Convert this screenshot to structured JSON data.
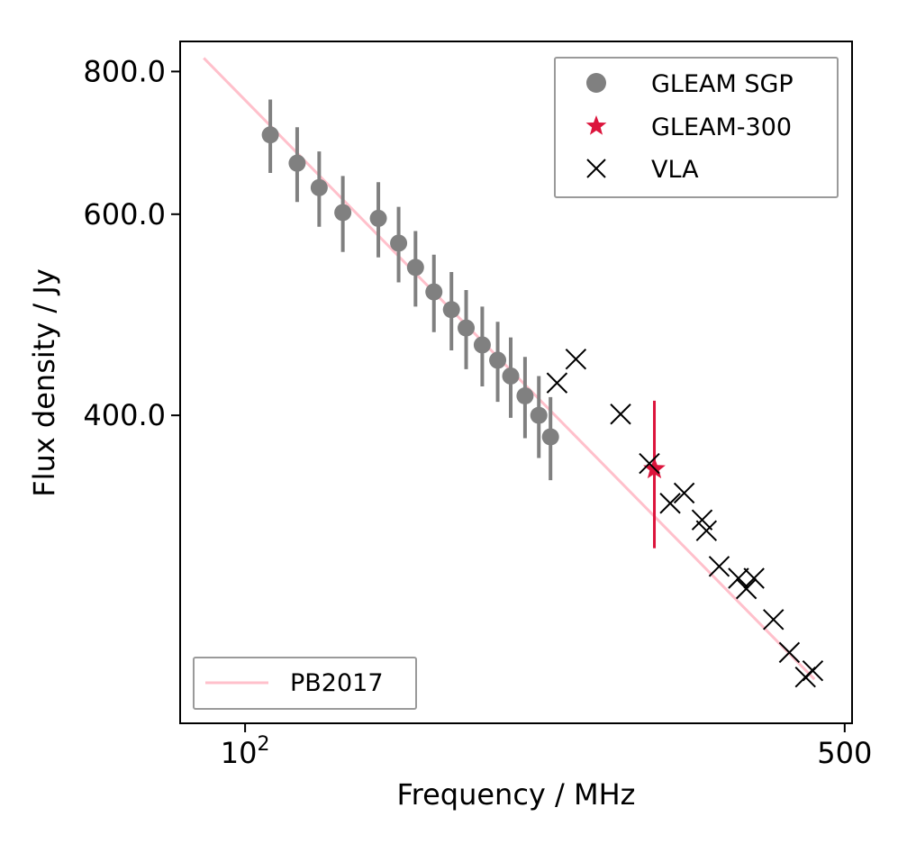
{
  "chart_data": {
    "type": "scatter",
    "xscale": "log",
    "yscale": "log",
    "xlabel": "Frequency / MHz",
    "ylabel": "Flux density / Jy",
    "xlim": [
      84,
      510
    ],
    "ylim": [
      215,
      850
    ],
    "x_ticks": [
      {
        "value": 100,
        "base": "10",
        "exp": "2"
      },
      {
        "value": 500,
        "label": "500"
      }
    ],
    "y_ticks": [
      {
        "value": 400,
        "label": "400.0"
      },
      {
        "value": 600,
        "label": "600.0"
      },
      {
        "value": 800,
        "label": "800.0"
      }
    ],
    "series": [
      {
        "name": "GLEAM SGP",
        "marker": "circle",
        "color": "#808080",
        "points": [
          {
            "x": 107,
            "y": 704,
            "err": 52
          },
          {
            "x": 115,
            "y": 665,
            "err": 50
          },
          {
            "x": 122,
            "y": 633,
            "err": 48
          },
          {
            "x": 130,
            "y": 602,
            "err": 46
          },
          {
            "x": 143,
            "y": 595,
            "err": 45
          },
          {
            "x": 151,
            "y": 566,
            "err": 43
          },
          {
            "x": 158,
            "y": 539,
            "err": 41
          },
          {
            "x": 166,
            "y": 513,
            "err": 40
          },
          {
            "x": 174,
            "y": 495,
            "err": 39
          },
          {
            "x": 181,
            "y": 477,
            "err": 38
          },
          {
            "x": 189,
            "y": 461,
            "err": 37
          },
          {
            "x": 197,
            "y": 447,
            "err": 36
          },
          {
            "x": 204,
            "y": 433,
            "err": 35
          },
          {
            "x": 212,
            "y": 416,
            "err": 34
          },
          {
            "x": 220,
            "y": 400,
            "err": 33
          },
          {
            "x": 227,
            "y": 383,
            "err": 32
          }
        ]
      },
      {
        "name": "GLEAM-300",
        "marker": "star",
        "color": "#dc143c",
        "points": [
          {
            "x": 300,
            "y": 359,
            "err": 53
          }
        ]
      },
      {
        "name": "VLA",
        "marker": "x",
        "color": "#000000",
        "points": [
          {
            "x": 231,
            "y": 427
          },
          {
            "x": 243,
            "y": 448
          },
          {
            "x": 274,
            "y": 401
          },
          {
            "x": 296,
            "y": 363
          },
          {
            "x": 313,
            "y": 335
          },
          {
            "x": 325,
            "y": 342
          },
          {
            "x": 341,
            "y": 324
          },
          {
            "x": 345,
            "y": 317
          },
          {
            "x": 357,
            "y": 295
          },
          {
            "x": 376,
            "y": 288
          },
          {
            "x": 384,
            "y": 282
          },
          {
            "x": 392,
            "y": 288
          },
          {
            "x": 413,
            "y": 265
          },
          {
            "x": 431,
            "y": 248
          },
          {
            "x": 450,
            "y": 236
          },
          {
            "x": 459,
            "y": 239
          }
        ]
      },
      {
        "name": "PB2017",
        "marker": "line",
        "color": "#ffc0cb",
        "points": [
          {
            "x": 89.5,
            "y": 822
          },
          {
            "x": 461,
            "y": 235
          }
        ]
      }
    ],
    "legends": [
      {
        "position": "top-right",
        "entries": [
          "GLEAM SGP",
          "GLEAM-300",
          "VLA"
        ]
      },
      {
        "position": "bottom-left",
        "entries": [
          "PB2017"
        ]
      }
    ]
  }
}
